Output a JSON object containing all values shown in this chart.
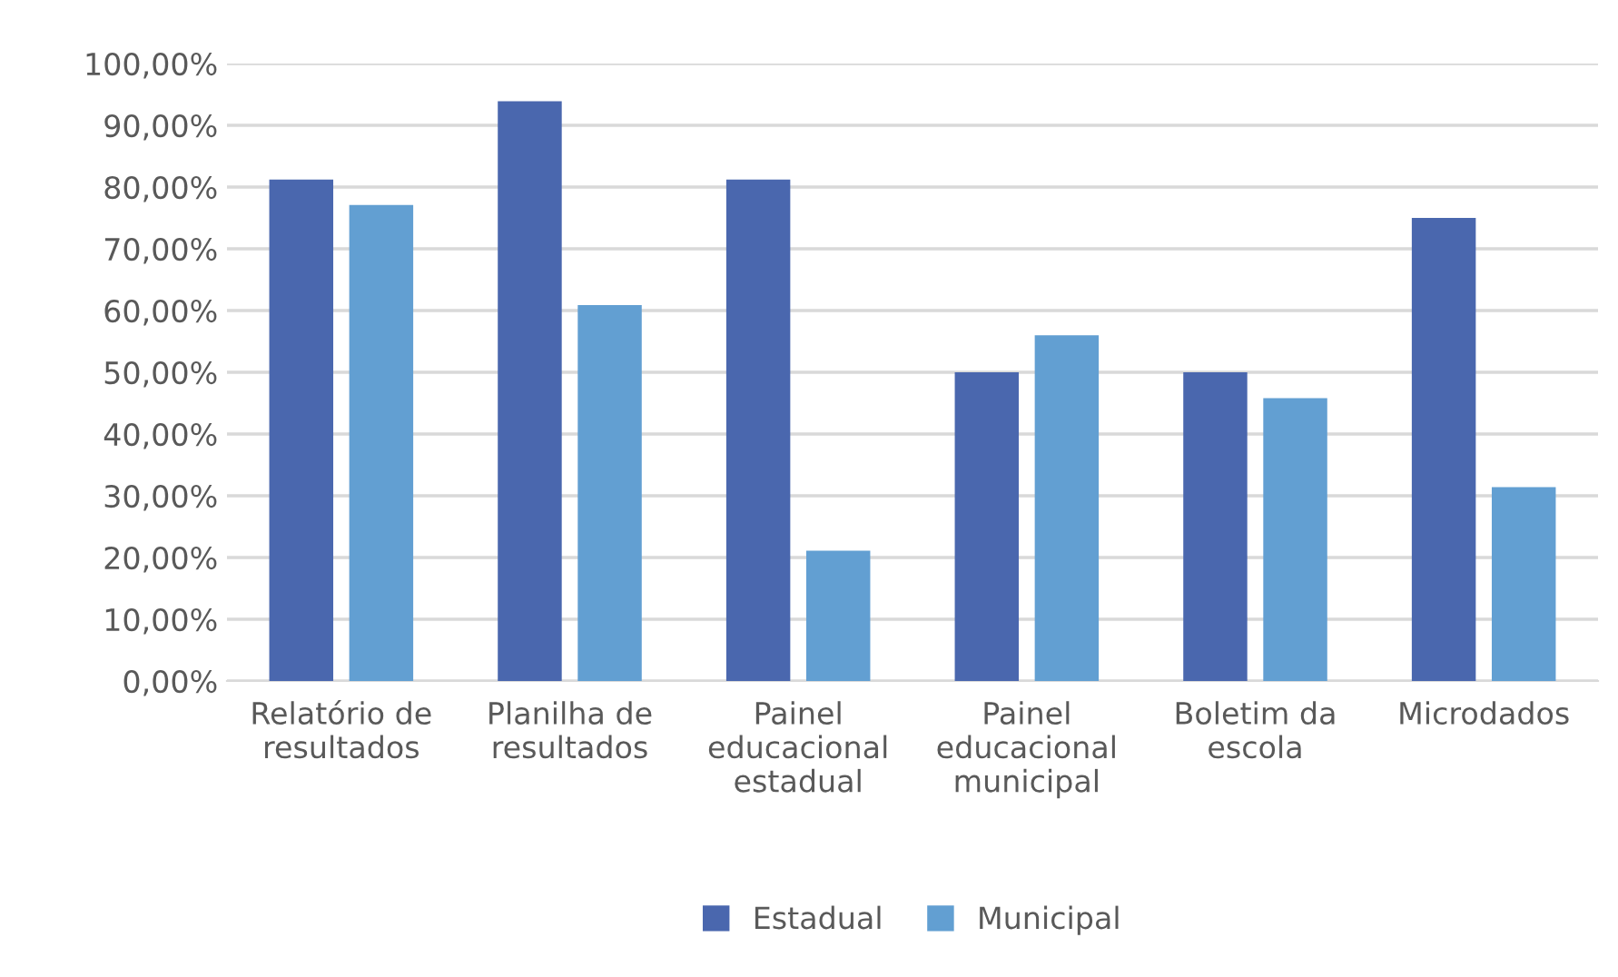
{
  "chart_data": {
    "type": "bar",
    "categories": [
      "Relatório de\nresultados",
      "Planilha de\nresultados",
      "Painel\neducacional\nestadual",
      "Painel\neducacional\nmunicipal",
      "Boletim da\nescola",
      "Microdados"
    ],
    "series": [
      {
        "name": "Estadual",
        "color": "#4a67ae",
        "values": [
          81.2,
          93.9,
          81.2,
          50.0,
          50.0,
          75.0
        ]
      },
      {
        "name": "Municipal",
        "color": "#629fd2",
        "values": [
          77.1,
          60.9,
          21.1,
          56.0,
          45.8,
          31.4
        ]
      }
    ],
    "ylim": [
      0,
      100
    ],
    "yticks": [
      {
        "value": 0,
        "label": "0,00%"
      },
      {
        "value": 10,
        "label": "10,00%"
      },
      {
        "value": 20,
        "label": "20,00%"
      },
      {
        "value": 30,
        "label": "30,00%"
      },
      {
        "value": 40,
        "label": "40,00%"
      },
      {
        "value": 50,
        "label": "50,00%"
      },
      {
        "value": 60,
        "label": "60,00%"
      },
      {
        "value": 70,
        "label": "70,00%"
      },
      {
        "value": 80,
        "label": "80,00%"
      },
      {
        "value": 90,
        "label": "90,00%"
      },
      {
        "value": 100,
        "label": "100,00%"
      }
    ],
    "grid": "y",
    "legend": "bottom"
  }
}
